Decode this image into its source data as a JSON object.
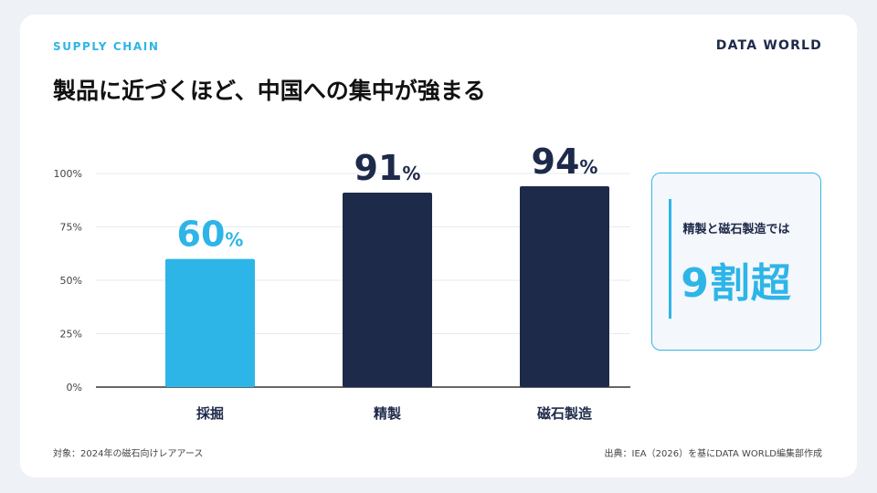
{
  "header": {
    "eyebrow": "SUPPLY CHAIN",
    "brand": "DATA WORLD",
    "title": "製品に近づくほど、中国への集中が強まる"
  },
  "colors": {
    "accent": "#2eb5e8",
    "navy": "#1e2a4a",
    "grid": "#e6ebf2",
    "axis": "#333333"
  },
  "chart_data": {
    "type": "bar",
    "categories": [
      "採掘",
      "精製",
      "磁石製造"
    ],
    "values": [
      60,
      91,
      94
    ],
    "value_unit": "%",
    "ylim": [
      0,
      100
    ],
    "yticks": [
      0,
      25,
      50,
      75,
      100
    ],
    "ytick_labels": [
      "0%",
      "25%",
      "50%",
      "75%",
      "100%"
    ],
    "bar_colors": [
      "#2eb5e8",
      "#1e2a4a",
      "#1e2a4a"
    ],
    "grid": true
  },
  "callout": {
    "label": "精製と磁石製造では",
    "value": "9割超"
  },
  "footer": {
    "note": "対象：2024年の磁石向けレアアース",
    "source": "出典：IEA（2026）を基にDATA WORLD編集部作成"
  }
}
